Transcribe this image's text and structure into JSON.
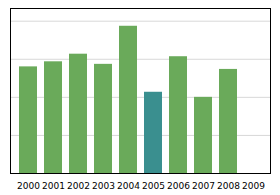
{
  "chart_data": {
    "type": "bar",
    "categories": [
      "2000",
      "2001",
      "2002",
      "2003",
      "2004",
      "2005",
      "2006",
      "2007",
      "2008",
      "2009"
    ],
    "values": [
      4.2,
      4.4,
      4.7,
      4.3,
      5.8,
      3.2,
      4.6,
      3.0,
      4.1,
      0.0
    ],
    "colors": [
      "#6aaa5a",
      "#6aaa5a",
      "#6aaa5a",
      "#6aaa5a",
      "#6aaa5a",
      "#3a8f8f",
      "#6aaa5a",
      "#6aaa5a",
      "#6aaa5a",
      "#6aaa5a"
    ],
    "ylim": [
      0,
      6.5
    ],
    "yticks": [
      1.5,
      3.0,
      4.5,
      6.0
    ],
    "grid": true,
    "tick_labels": "x"
  }
}
